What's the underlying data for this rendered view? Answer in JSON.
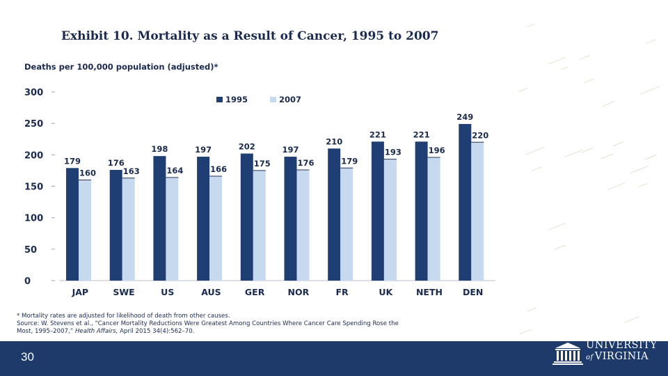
{
  "slide": {
    "number": "30"
  },
  "chart_data": {
    "type": "bar",
    "title": "Exhibit 10. Mortality as a Result of Cancer, 1995 to 2007",
    "ylabel": "Deaths per 100,000 population (adjusted)*",
    "xlabel": "",
    "ylim": [
      0,
      300
    ],
    "yticks": [
      0,
      50,
      100,
      150,
      200,
      250,
      300
    ],
    "grid": false,
    "legend_position": "top",
    "categories": [
      "JAP",
      "SWE",
      "US",
      "AUS",
      "GER",
      "NOR",
      "FR",
      "UK",
      "NETH",
      "DEN"
    ],
    "series": [
      {
        "name": "1995",
        "values": [
          179,
          176,
          198,
          197,
          202,
          197,
          210,
          221,
          221,
          249
        ]
      },
      {
        "name": "2007",
        "values": [
          160,
          163,
          164,
          166,
          175,
          176,
          179,
          193,
          196,
          220
        ]
      }
    ]
  },
  "colors": {
    "series_1995": "#1f3f74",
    "series_2007": "#c6d9ef",
    "text": "#1a2a4e",
    "footer": "#1e3a6b"
  },
  "footnotes": {
    "line1": "* Mortality rates are adjusted for likelihood of death from other causes.",
    "line2": "Source: W. Stevens et al., “Cancer Mortality Reductions Were Greatest Among Countries Where Cancer Care Spending Rose the",
    "line3_prefix": "Most, 1995–2007,”",
    "journal": "Health Affairs,",
    "line3_suffix": "April 2015 34(4):562–70."
  },
  "logo": {
    "line1": "UNIVERSITY",
    "line2": "VIRGINIA",
    "of": "of"
  }
}
